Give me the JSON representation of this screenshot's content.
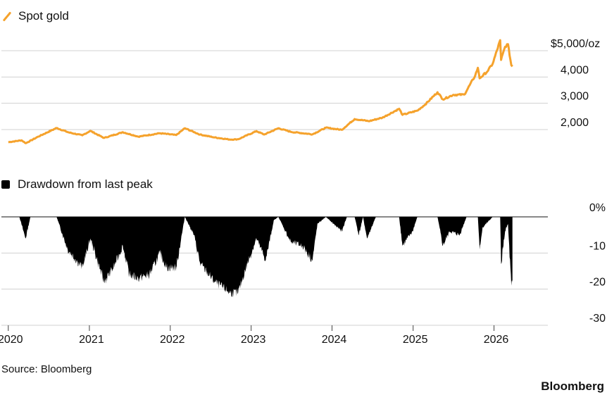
{
  "legend": {
    "top_label": "Spot gold",
    "bottom_label": "Drawdown from last peak"
  },
  "footer": {
    "source": "Source: Bloomberg",
    "brand": "Bloomberg"
  },
  "colors": {
    "gold_line": "#f5a22c",
    "drawdown_fill": "#000000",
    "grid": "#d0d0d0"
  },
  "chart_data": [
    {
      "type": "line",
      "title": "",
      "series": [
        {
          "name": "Spot gold",
          "points": [
            [
              "2020-01-01",
              1520
            ],
            [
              "2020-03-01",
              1590
            ],
            [
              "2020-03-20",
              1480
            ],
            [
              "2020-05-15",
              1730
            ],
            [
              "2020-08-06",
              2060
            ],
            [
              "2020-09-30",
              1890
            ],
            [
              "2020-11-30",
              1780
            ],
            [
              "2021-01-05",
              1950
            ],
            [
              "2021-03-08",
              1680
            ],
            [
              "2021-06-01",
              1900
            ],
            [
              "2021-08-10",
              1730
            ],
            [
              "2021-11-15",
              1860
            ],
            [
              "2022-01-28",
              1790
            ],
            [
              "2022-03-08",
              2050
            ],
            [
              "2022-05-15",
              1810
            ],
            [
              "2022-07-20",
              1700
            ],
            [
              "2022-09-28",
              1620
            ],
            [
              "2022-11-03",
              1630
            ],
            [
              "2023-01-25",
              1940
            ],
            [
              "2023-03-01",
              1810
            ],
            [
              "2023-05-04",
              2050
            ],
            [
              "2023-07-01",
              1910
            ],
            [
              "2023-10-05",
              1820
            ],
            [
              "2023-12-04",
              2070
            ],
            [
              "2024-02-14",
              1990
            ],
            [
              "2024-04-12",
              2400
            ],
            [
              "2024-06-15",
              2320
            ],
            [
              "2024-08-15",
              2450
            ],
            [
              "2024-10-30",
              2790
            ],
            [
              "2024-11-14",
              2560
            ],
            [
              "2025-01-20",
              2720
            ],
            [
              "2025-02-24",
              2950
            ],
            [
              "2025-04-21",
              3420
            ],
            [
              "2025-05-15",
              3150
            ],
            [
              "2025-07-01",
              3320
            ],
            [
              "2025-08-20",
              3330
            ],
            [
              "2025-10-08",
              4050
            ],
            [
              "2025-10-20",
              4350
            ],
            [
              "2025-10-28",
              3950
            ],
            [
              "2025-12-01",
              4200
            ],
            [
              "2025-12-26",
              4500
            ],
            [
              "2026-01-29",
              5400
            ],
            [
              "2026-02-02",
              4650
            ],
            [
              "2026-02-20",
              5150
            ],
            [
              "2026-03-05",
              5250
            ],
            [
              "2026-03-20",
              4450
            ],
            [
              "2026-03-25",
              4400
            ]
          ]
        }
      ],
      "ylim": [
        1200,
        5500
      ],
      "yticks": [
        2000,
        3000,
        4000,
        5000
      ],
      "ytick_labels": [
        "2,000",
        "3,000",
        "4,000",
        "$5,000/oz"
      ],
      "grid": true
    },
    {
      "type": "area",
      "title": "",
      "series": [
        {
          "name": "Drawdown from last peak",
          "points": [
            [
              "2020-01-01",
              0
            ],
            [
              "2020-02-20",
              0
            ],
            [
              "2020-03-19",
              -6
            ],
            [
              "2020-04-10",
              0
            ],
            [
              "2020-08-06",
              0
            ],
            [
              "2020-09-25",
              -9
            ],
            [
              "2020-11-30",
              -14
            ],
            [
              "2021-01-06",
              -6
            ],
            [
              "2021-03-08",
              -18
            ],
            [
              "2021-04-20",
              -14
            ],
            [
              "2021-06-01",
              -8
            ],
            [
              "2021-06-30",
              -16
            ],
            [
              "2021-08-09",
              -17
            ],
            [
              "2021-09-29",
              -16
            ],
            [
              "2021-11-16",
              -10
            ],
            [
              "2021-12-15",
              -14
            ],
            [
              "2022-01-28",
              -14
            ],
            [
              "2022-03-08",
              0
            ],
            [
              "2022-04-18",
              -5
            ],
            [
              "2022-05-16",
              -13
            ],
            [
              "2022-07-21",
              -18
            ],
            [
              "2022-09-28",
              -21
            ],
            [
              "2022-11-03",
              -21
            ],
            [
              "2022-12-15",
              -13
            ],
            [
              "2023-01-25",
              -6
            ],
            [
              "2023-03-08",
              -12
            ],
            [
              "2023-04-13",
              -1
            ],
            [
              "2023-05-04",
              0
            ],
            [
              "2023-06-29",
              -7
            ],
            [
              "2023-08-21",
              -8
            ],
            [
              "2023-10-05",
              -12
            ],
            [
              "2023-10-27",
              -2
            ],
            [
              "2023-12-04",
              0
            ],
            [
              "2024-02-14",
              -4
            ],
            [
              "2024-03-08",
              0
            ],
            [
              "2024-04-12",
              0
            ],
            [
              "2024-05-01",
              -5
            ],
            [
              "2024-05-20",
              0
            ],
            [
              "2024-06-07",
              -6
            ],
            [
              "2024-07-17",
              0
            ],
            [
              "2024-10-30",
              0
            ],
            [
              "2024-11-14",
              -8
            ],
            [
              "2024-12-30",
              -4
            ],
            [
              "2025-01-20",
              0
            ],
            [
              "2025-04-21",
              0
            ],
            [
              "2025-05-15",
              -8
            ],
            [
              "2025-06-15",
              -4
            ],
            [
              "2025-07-30",
              -5
            ],
            [
              "2025-08-30",
              0
            ],
            [
              "2025-10-20",
              0
            ],
            [
              "2025-10-28",
              -9
            ],
            [
              "2025-11-10",
              -3
            ],
            [
              "2025-12-26",
              0
            ],
            [
              "2026-01-29",
              0
            ],
            [
              "2026-02-02",
              -13
            ],
            [
              "2026-02-20",
              -4
            ],
            [
              "2026-03-05",
              -2
            ],
            [
              "2026-03-20",
              -19
            ],
            [
              "2026-03-25",
              -18
            ]
          ]
        }
      ],
      "ylim": [
        -30,
        0
      ],
      "yticks": [
        0,
        -10,
        -20,
        -30
      ],
      "ytick_labels": [
        "0%",
        "-10",
        "-20",
        "-30"
      ],
      "grid": true
    }
  ],
  "x_axis": {
    "tick_labels": [
      "2020",
      "2021",
      "2022",
      "2023",
      "2024",
      "2025",
      "2026"
    ],
    "tick_dates": [
      "2020-01-01",
      "2021-01-01",
      "2022-01-01",
      "2023-01-01",
      "2024-01-01",
      "2025-01-01",
      "2026-01-01"
    ],
    "range": [
      "2019-12-01",
      "2026-09-01"
    ]
  }
}
